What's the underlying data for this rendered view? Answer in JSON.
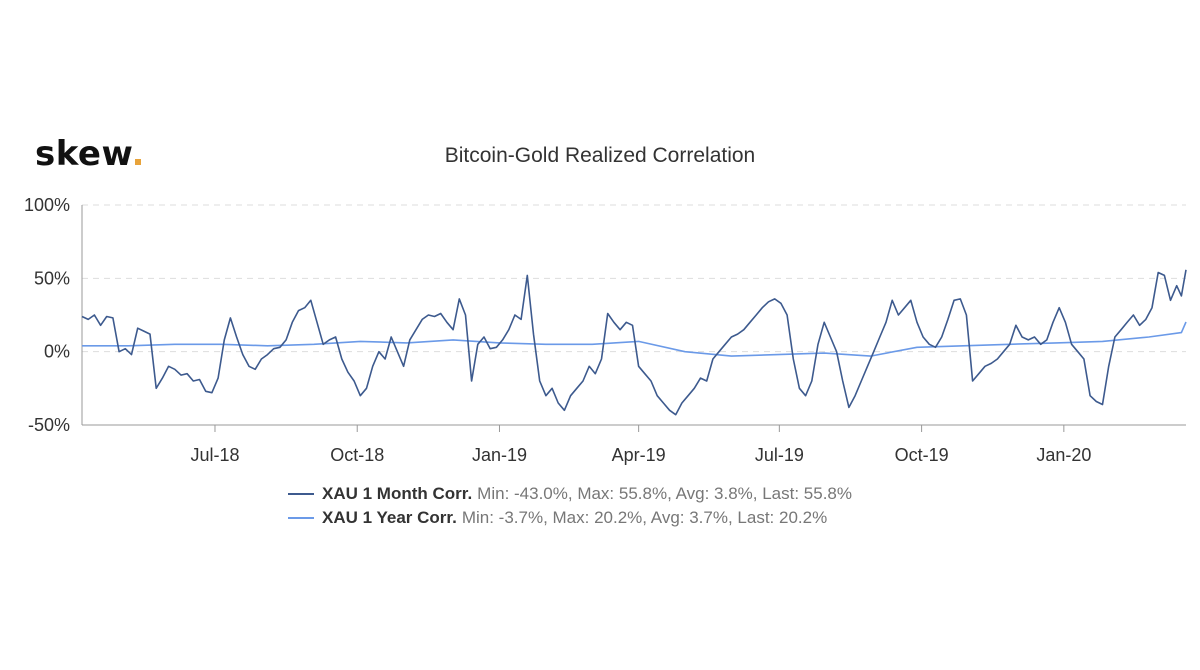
{
  "brand": {
    "logo_text": "skew",
    "dot_color": "#e8a33a"
  },
  "chart_data": {
    "type": "line",
    "title": "Bitcoin-Gold Realized Correlation",
    "xlabel": "",
    "ylabel": "",
    "ylim": [
      -50,
      100
    ],
    "yticks": [
      {
        "value": 100,
        "label": "100%"
      },
      {
        "value": 50,
        "label": "50%"
      },
      {
        "value": 0,
        "label": "0%"
      },
      {
        "value": -50,
        "label": "-50%"
      }
    ],
    "xlim": [
      "2018-04-06",
      "2020-03-20"
    ],
    "xticks": [
      {
        "date": "2018-07-01",
        "label": "Jul-18"
      },
      {
        "date": "2018-10-01",
        "label": "Oct-18"
      },
      {
        "date": "2019-01-01",
        "label": "Jan-19"
      },
      {
        "date": "2019-04-01",
        "label": "Apr-19"
      },
      {
        "date": "2019-07-01",
        "label": "Jul-19"
      },
      {
        "date": "2019-10-01",
        "label": "Oct-19"
      },
      {
        "date": "2020-01-01",
        "label": "Jan-20"
      }
    ],
    "grid": "horizontal-dashed",
    "legend_position": "bottom",
    "series": [
      {
        "name": "XAU 1 Month Corr.",
        "stats": "Min: -43.0%, Max: 55.8%, Avg: 3.8%, Last: 55.8%",
        "color": "#3d5a8e",
        "points": [
          [
            "2018-04-06",
            24
          ],
          [
            "2018-04-10",
            22
          ],
          [
            "2018-04-14",
            25
          ],
          [
            "2018-04-18",
            18
          ],
          [
            "2018-04-22",
            24
          ],
          [
            "2018-04-26",
            23
          ],
          [
            "2018-04-30",
            0
          ],
          [
            "2018-05-04",
            2
          ],
          [
            "2018-05-08",
            -2
          ],
          [
            "2018-05-12",
            16
          ],
          [
            "2018-05-16",
            14
          ],
          [
            "2018-05-20",
            12
          ],
          [
            "2018-05-24",
            -25
          ],
          [
            "2018-05-28",
            -18
          ],
          [
            "2018-06-01",
            -10
          ],
          [
            "2018-06-05",
            -12
          ],
          [
            "2018-06-09",
            -16
          ],
          [
            "2018-06-13",
            -15
          ],
          [
            "2018-06-17",
            -20
          ],
          [
            "2018-06-21",
            -19
          ],
          [
            "2018-06-25",
            -27
          ],
          [
            "2018-06-29",
            -28
          ],
          [
            "2018-07-03",
            -18
          ],
          [
            "2018-07-07",
            8
          ],
          [
            "2018-07-11",
            23
          ],
          [
            "2018-07-15",
            10
          ],
          [
            "2018-07-19",
            -2
          ],
          [
            "2018-07-23",
            -10
          ],
          [
            "2018-07-27",
            -12
          ],
          [
            "2018-07-31",
            -5
          ],
          [
            "2018-08-04",
            -2
          ],
          [
            "2018-08-08",
            2
          ],
          [
            "2018-08-12",
            3
          ],
          [
            "2018-08-16",
            8
          ],
          [
            "2018-08-20",
            20
          ],
          [
            "2018-08-24",
            28
          ],
          [
            "2018-08-28",
            30
          ],
          [
            "2018-09-01",
            35
          ],
          [
            "2018-09-05",
            20
          ],
          [
            "2018-09-09",
            5
          ],
          [
            "2018-09-13",
            8
          ],
          [
            "2018-09-17",
            10
          ],
          [
            "2018-09-21",
            -5
          ],
          [
            "2018-09-25",
            -14
          ],
          [
            "2018-09-29",
            -20
          ],
          [
            "2018-10-03",
            -30
          ],
          [
            "2018-10-07",
            -25
          ],
          [
            "2018-10-11",
            -10
          ],
          [
            "2018-10-15",
            0
          ],
          [
            "2018-10-19",
            -5
          ],
          [
            "2018-10-23",
            10
          ],
          [
            "2018-10-27",
            0
          ],
          [
            "2018-10-31",
            -10
          ],
          [
            "2018-11-04",
            8
          ],
          [
            "2018-11-08",
            15
          ],
          [
            "2018-11-12",
            22
          ],
          [
            "2018-11-16",
            25
          ],
          [
            "2018-11-20",
            24
          ],
          [
            "2018-11-24",
            26
          ],
          [
            "2018-11-28",
            20
          ],
          [
            "2018-12-02",
            15
          ],
          [
            "2018-12-06",
            36
          ],
          [
            "2018-12-10",
            25
          ],
          [
            "2018-12-14",
            -20
          ],
          [
            "2018-12-18",
            5
          ],
          [
            "2018-12-22",
            10
          ],
          [
            "2018-12-26",
            2
          ],
          [
            "2018-12-30",
            3
          ],
          [
            "2019-01-03",
            8
          ],
          [
            "2019-01-07",
            15
          ],
          [
            "2019-01-11",
            25
          ],
          [
            "2019-01-15",
            22
          ],
          [
            "2019-01-19",
            52
          ],
          [
            "2019-01-23",
            12
          ],
          [
            "2019-01-27",
            -20
          ],
          [
            "2019-01-31",
            -30
          ],
          [
            "2019-02-04",
            -25
          ],
          [
            "2019-02-08",
            -35
          ],
          [
            "2019-02-12",
            -40
          ],
          [
            "2019-02-16",
            -30
          ],
          [
            "2019-02-20",
            -25
          ],
          [
            "2019-02-24",
            -20
          ],
          [
            "2019-02-28",
            -10
          ],
          [
            "2019-03-04",
            -15
          ],
          [
            "2019-03-08",
            -5
          ],
          [
            "2019-03-12",
            26
          ],
          [
            "2019-03-16",
            20
          ],
          [
            "2019-03-20",
            15
          ],
          [
            "2019-03-24",
            20
          ],
          [
            "2019-03-28",
            18
          ],
          [
            "2019-04-01",
            -10
          ],
          [
            "2019-04-05",
            -15
          ],
          [
            "2019-04-09",
            -20
          ],
          [
            "2019-04-13",
            -30
          ],
          [
            "2019-04-17",
            -35
          ],
          [
            "2019-04-21",
            -40
          ],
          [
            "2019-04-25",
            -43
          ],
          [
            "2019-04-29",
            -35
          ],
          [
            "2019-05-03",
            -30
          ],
          [
            "2019-05-07",
            -25
          ],
          [
            "2019-05-11",
            -18
          ],
          [
            "2019-05-15",
            -20
          ],
          [
            "2019-05-19",
            -5
          ],
          [
            "2019-05-23",
            0
          ],
          [
            "2019-05-27",
            5
          ],
          [
            "2019-05-31",
            10
          ],
          [
            "2019-06-04",
            12
          ],
          [
            "2019-06-08",
            15
          ],
          [
            "2019-06-12",
            20
          ],
          [
            "2019-06-16",
            25
          ],
          [
            "2019-06-20",
            30
          ],
          [
            "2019-06-24",
            34
          ],
          [
            "2019-06-28",
            36
          ],
          [
            "2019-07-02",
            33
          ],
          [
            "2019-07-06",
            25
          ],
          [
            "2019-07-10",
            -5
          ],
          [
            "2019-07-14",
            -25
          ],
          [
            "2019-07-18",
            -30
          ],
          [
            "2019-07-22",
            -20
          ],
          [
            "2019-07-26",
            5
          ],
          [
            "2019-07-30",
            20
          ],
          [
            "2019-08-03",
            10
          ],
          [
            "2019-08-07",
            0
          ],
          [
            "2019-08-11",
            -20
          ],
          [
            "2019-08-15",
            -38
          ],
          [
            "2019-08-19",
            -30
          ],
          [
            "2019-08-23",
            -20
          ],
          [
            "2019-08-27",
            -10
          ],
          [
            "2019-08-31",
            0
          ],
          [
            "2019-09-04",
            10
          ],
          [
            "2019-09-08",
            20
          ],
          [
            "2019-09-12",
            35
          ],
          [
            "2019-09-16",
            25
          ],
          [
            "2019-09-20",
            30
          ],
          [
            "2019-09-24",
            35
          ],
          [
            "2019-09-28",
            20
          ],
          [
            "2019-10-02",
            10
          ],
          [
            "2019-10-06",
            5
          ],
          [
            "2019-10-10",
            3
          ],
          [
            "2019-10-14",
            10
          ],
          [
            "2019-10-18",
            22
          ],
          [
            "2019-10-22",
            35
          ],
          [
            "2019-10-26",
            36
          ],
          [
            "2019-10-30",
            25
          ],
          [
            "2019-11-03",
            -20
          ],
          [
            "2019-11-07",
            -15
          ],
          [
            "2019-11-11",
            -10
          ],
          [
            "2019-11-15",
            -8
          ],
          [
            "2019-11-19",
            -5
          ],
          [
            "2019-11-23",
            0
          ],
          [
            "2019-11-27",
            5
          ],
          [
            "2019-12-01",
            18
          ],
          [
            "2019-12-05",
            10
          ],
          [
            "2019-12-09",
            8
          ],
          [
            "2019-12-13",
            10
          ],
          [
            "2019-12-17",
            5
          ],
          [
            "2019-12-21",
            8
          ],
          [
            "2019-12-25",
            20
          ],
          [
            "2019-12-29",
            30
          ],
          [
            "2020-01-02",
            20
          ],
          [
            "2020-01-06",
            5
          ],
          [
            "2020-01-10",
            0
          ],
          [
            "2020-01-14",
            -5
          ],
          [
            "2020-01-18",
            -30
          ],
          [
            "2020-01-22",
            -34
          ],
          [
            "2020-01-26",
            -36
          ],
          [
            "2020-01-30",
            -10
          ],
          [
            "2020-02-03",
            10
          ],
          [
            "2020-02-07",
            15
          ],
          [
            "2020-02-11",
            20
          ],
          [
            "2020-02-15",
            25
          ],
          [
            "2020-02-19",
            18
          ],
          [
            "2020-02-23",
            22
          ],
          [
            "2020-02-27",
            30
          ],
          [
            "2020-03-02",
            54
          ],
          [
            "2020-03-06",
            52
          ],
          [
            "2020-03-10",
            35
          ],
          [
            "2020-03-14",
            45
          ],
          [
            "2020-03-17",
            38
          ],
          [
            "2020-03-20",
            55.8
          ]
        ]
      },
      {
        "name": "XAU 1 Year Corr.",
        "stats": "Min: -3.7%, Max: 20.2%, Avg: 3.7%, Last: 20.2%",
        "color": "#6b9ae8",
        "points": [
          [
            "2018-04-06",
            4
          ],
          [
            "2018-05-06",
            4
          ],
          [
            "2018-06-05",
            5
          ],
          [
            "2018-07-05",
            5
          ],
          [
            "2018-08-04",
            4
          ],
          [
            "2018-09-03",
            5
          ],
          [
            "2018-10-03",
            7
          ],
          [
            "2018-11-02",
            6
          ],
          [
            "2018-12-02",
            8
          ],
          [
            "2019-01-01",
            6
          ],
          [
            "2019-01-31",
            5
          ],
          [
            "2019-03-02",
            5
          ],
          [
            "2019-04-01",
            7
          ],
          [
            "2019-05-01",
            0
          ],
          [
            "2019-05-31",
            -3
          ],
          [
            "2019-06-30",
            -2
          ],
          [
            "2019-07-30",
            -1
          ],
          [
            "2019-08-29",
            -3
          ],
          [
            "2019-09-28",
            3
          ],
          [
            "2019-10-28",
            4
          ],
          [
            "2019-11-27",
            5
          ],
          [
            "2019-12-27",
            6
          ],
          [
            "2020-01-26",
            7
          ],
          [
            "2020-02-25",
            10
          ],
          [
            "2020-03-17",
            13
          ],
          [
            "2020-03-20",
            20.2
          ]
        ]
      }
    ]
  }
}
